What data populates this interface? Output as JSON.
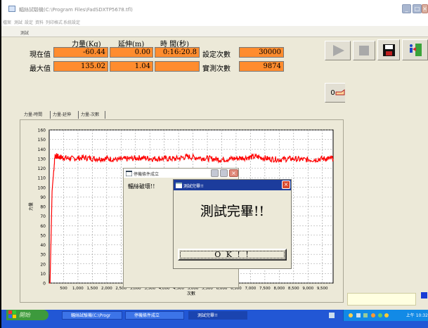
{
  "window": {
    "title": "輻絲試驗機(C:\\Program Files\\FadSDXTP5678.tfl)"
  },
  "menu": [
    "檔案",
    "測試",
    "設定",
    "資料",
    "列印格式",
    "系統設定"
  ],
  "subtitle": "測試",
  "readout": {
    "headers": {
      "force": "力量(Kg)",
      "elongation": "延伸(m)",
      "time": "時 間(秒)"
    },
    "current_label": "現在值",
    "max_label": "最大值",
    "current": {
      "force": "-60.44",
      "elongation": "0.00",
      "time": "0:16:20.8"
    },
    "max": {
      "force": "135.02",
      "elongation": "1.04",
      "time": ""
    },
    "set_count_label": "設定次數",
    "set_count": "30000",
    "actual_count_label": "實測次數",
    "actual_count": "9874"
  },
  "toolbar": {
    "play_icon": "play-icon",
    "stop_icon": "stop-icon",
    "save_icon": "floppy-disk-icon",
    "exit_icon": "exit-door-icon",
    "zero_label": "0",
    "zero_icon": "pointing-hand-icon",
    "zoom_icon": "magnifier-icon",
    "print_icon": "printer-icon"
  },
  "tabs": [
    "力量-時間",
    "力量-延伸",
    "力量-次數"
  ],
  "chart_data": {
    "type": "line",
    "xlabel": "次數",
    "ylabel": "力量",
    "xlim": [
      0,
      9874
    ],
    "ylim": [
      0,
      160
    ],
    "xticks": [
      500,
      1000,
      1500,
      2000,
      2500,
      3000,
      3500,
      4000,
      4500,
      5000,
      5500,
      6000,
      6500,
      7000,
      7500,
      8000,
      8500,
      9000,
      9500
    ],
    "xtick_labels": [
      "500",
      "1,000",
      "1,500",
      "2,000",
      "2,500",
      "3,000",
      "3,500",
      "4,000",
      "4,500",
      "5,000",
      "5,500",
      "6,000",
      "6,500",
      "7,000",
      "7,500",
      "8,000",
      "8,500",
      "9,000",
      "9,500"
    ],
    "yticks": [
      0,
      10,
      20,
      30,
      40,
      50,
      60,
      70,
      80,
      90,
      100,
      110,
      120,
      130,
      140,
      150,
      160
    ],
    "grid": true,
    "series": [
      {
        "color": "#ff0000",
        "x": [
          0,
          30,
          100,
          200,
          300,
          500,
          800,
          1200,
          1600,
          2000,
          2400,
          2800,
          3200,
          3600,
          4000,
          4400,
          4800,
          5200,
          5600,
          6000,
          6400,
          6800,
          7200,
          7600,
          8000,
          8400,
          8800,
          9200,
          9600,
          9874
        ],
        "y": [
          0,
          0,
          96,
          133,
          132,
          131,
          130,
          131,
          130,
          130,
          129,
          130,
          131,
          130,
          130,
          130,
          132,
          131,
          130,
          129,
          130,
          131,
          132,
          130,
          129,
          130,
          129,
          129,
          130,
          130
        ],
        "noise": 3
      }
    ]
  },
  "dialog_back": {
    "title": "停機條件成立",
    "message": "輻絲破壞!!"
  },
  "dialog_front": {
    "title": "測試完畢!!",
    "message": "測試完畢!!",
    "ok_label": "O K ! !"
  },
  "taskbar": {
    "start_label": "開始",
    "tasks": [
      "輻絲試驗機(C:\\Progr",
      "停機條件成立",
      "測試完畢!!"
    ],
    "clock": "上午 10:32"
  },
  "colors": {
    "value_box": "#ff8c2e",
    "series": "#ff0000",
    "dialog_title_active": "#1c3c9c",
    "taskbar": "#2257d5"
  }
}
